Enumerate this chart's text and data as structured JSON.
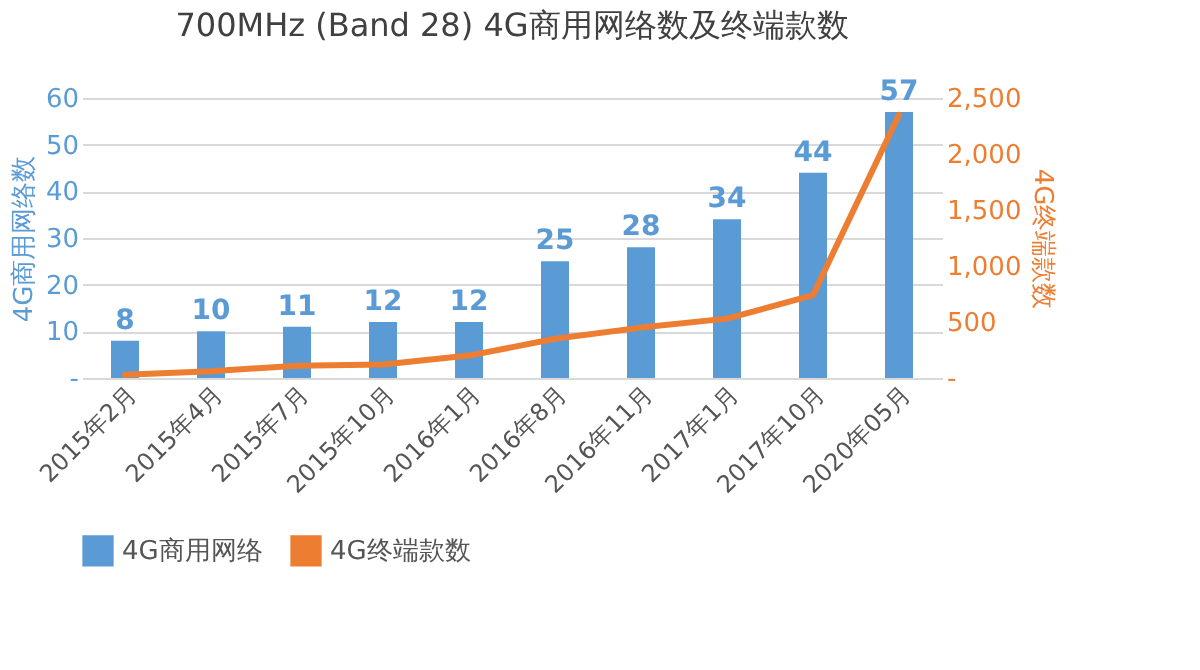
{
  "chart_data": {
    "type": "bar",
    "title": "700MHz (Band 28) 4G商用网络数及终端款数",
    "ylabel": "4G商用网络数",
    "y2label": "4G终端款数",
    "categories": [
      "2015年2月",
      "2015年4月",
      "2015年7月",
      "2015年10月",
      "2016年1月",
      "2016年8月",
      "2016年11月",
      "2017年1月",
      "2017年10月",
      "2020年05月"
    ],
    "series": [
      {
        "name": "4G商用网络",
        "color": "#5b9bd5",
        "values": [
          8,
          10,
          11,
          12,
          12,
          25,
          28,
          34,
          44,
          57
        ],
        "value_labels": [
          "8",
          "10",
          "11",
          "12",
          "12",
          "25",
          "28",
          "34",
          "44",
          "57"
        ]
      },
      {
        "name": "4G终端款数",
        "type": "line",
        "axis": "y2",
        "color": "#ed7d31",
        "values": [
          30,
          60,
          110,
          120,
          200,
          350,
          450,
          530,
          740,
          2350
        ]
      }
    ],
    "ylim": [
      0,
      60
    ],
    "yticks": [
      {
        "value": 0,
        "label": "-"
      },
      10,
      20,
      30,
      40,
      50,
      60
    ],
    "y2lim": [
      0,
      2500
    ],
    "y2ticks": [
      {
        "value": 0,
        "label": "-"
      },
      500,
      {
        "value": 1000,
        "label": "1,000"
      },
      {
        "value": 1500,
        "label": "1,500"
      },
      {
        "value": 2000,
        "label": "2,000"
      },
      {
        "value": 2500,
        "label": "2,500"
      }
    ],
    "grid": "y",
    "legend": "bottom"
  }
}
